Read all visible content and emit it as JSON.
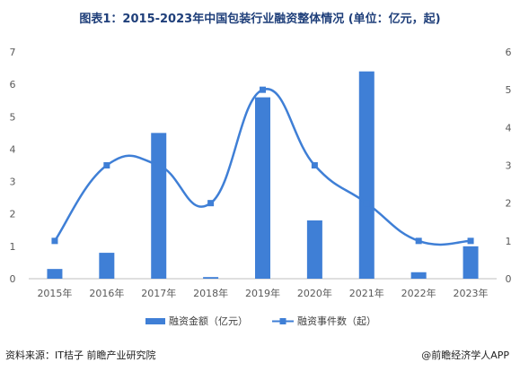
{
  "header": {
    "title": "图表1：2015-2023年中国包装行业融资整体情况 (单位：亿元，起)"
  },
  "footer": {
    "source": "资料来源：IT桔子 前瞻产业研究院",
    "credit": "@前瞻经济学人APP"
  },
  "colors": {
    "bar": "#3f7fd6",
    "line": "#3f7fd6",
    "title": "#1f3f7a"
  },
  "chart_data": {
    "type": "bar",
    "categories": [
      "2015年",
      "2016年",
      "2017年",
      "2018年",
      "2019年",
      "2020年",
      "2021年",
      "2022年",
      "2023年"
    ],
    "series": [
      {
        "name": "融资金额（亿元）",
        "type": "bar",
        "axis": "left",
        "values": [
          0.3,
          0.8,
          4.5,
          0.05,
          5.6,
          1.8,
          6.4,
          0.2,
          1.0
        ]
      },
      {
        "name": "融资事件数（起）",
        "type": "line",
        "axis": "right",
        "smooth": true,
        "values": [
          1,
          3,
          3,
          2,
          5,
          3,
          2,
          1,
          1
        ]
      }
    ],
    "y_left": {
      "ylim": [
        0,
        7
      ],
      "ticks": [
        "0",
        "1",
        "2",
        "3",
        "4",
        "5",
        "6",
        "7"
      ]
    },
    "y_right": {
      "ylim": [
        0,
        6
      ],
      "ticks": [
        "0",
        "1",
        "2",
        "3",
        "4",
        "5",
        "6"
      ]
    },
    "legend_position": "bottom",
    "grid": false
  }
}
